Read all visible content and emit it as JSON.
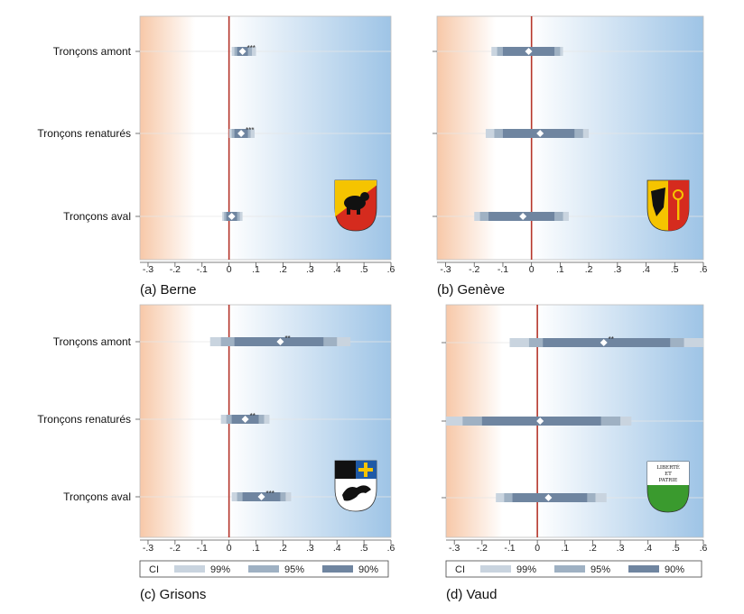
{
  "colors": {
    "left_shade": "#f7c8a8",
    "right_shade": "#9ec4e6",
    "zero_line": "#b5352b",
    "ci99": "#c9d4df",
    "ci95": "#9fb1c3",
    "ci90": "#6f85a0",
    "marker": "#ffffff"
  },
  "legend": {
    "label": "CI",
    "items": [
      "99%",
      "95%",
      "90%"
    ]
  },
  "chart_data": [
    {
      "type": "coefplot",
      "title": "(a) Berne",
      "categories": [
        "Tronçons amont",
        "Tronçons renaturés",
        "Tronçons aval"
      ],
      "show_category_labels": true,
      "xlim": [
        -0.33,
        0.6
      ],
      "xticks": [
        -0.3,
        -0.2,
        -0.1,
        0,
        0.1,
        0.2,
        0.3,
        0.4,
        0.5,
        0.6
      ],
      "xtick_labels": [
        "-.3",
        "-.2",
        "-.1",
        "0",
        ".1",
        ".2",
        ".3",
        ".4",
        ".5",
        ".6"
      ],
      "points": [
        {
          "estimate": 0.05,
          "ci90": [
            0.03,
            0.07
          ],
          "ci95": [
            0.02,
            0.085
          ],
          "ci99": [
            0.01,
            0.1
          ],
          "stars": "***"
        },
        {
          "estimate": 0.045,
          "ci90": [
            0.02,
            0.07
          ],
          "ci95": [
            0.01,
            0.08
          ],
          "ci99": [
            0.0,
            0.095
          ],
          "stars": "***"
        },
        {
          "estimate": 0.01,
          "ci90": [
            -0.01,
            0.03
          ],
          "ci95": [
            -0.018,
            0.04
          ],
          "ci99": [
            -0.025,
            0.05
          ],
          "stars": ""
        }
      ],
      "coat_of_arms": "bern-coat-of-arms"
    },
    {
      "type": "coefplot",
      "title": "(b) Genève",
      "categories": [
        "Tronçons amont",
        "Tronçons renaturés",
        "Tronçons aval"
      ],
      "show_category_labels": false,
      "xlim": [
        -0.33,
        0.6
      ],
      "xticks": [
        -0.3,
        -0.2,
        -0.1,
        0,
        0.1,
        0.2,
        0.3,
        0.4,
        0.5,
        0.6
      ],
      "xtick_labels": [
        "-.3",
        "-.2",
        "-.1",
        "0",
        ".1",
        ".2",
        ".3",
        ".4",
        ".5",
        ".6"
      ],
      "points": [
        {
          "estimate": -0.01,
          "ci90": [
            -0.1,
            0.08
          ],
          "ci95": [
            -0.12,
            0.1
          ],
          "ci99": [
            -0.14,
            0.11
          ],
          "stars": ""
        },
        {
          "estimate": 0.03,
          "ci90": [
            -0.1,
            0.15
          ],
          "ci95": [
            -0.13,
            0.18
          ],
          "ci99": [
            -0.16,
            0.2
          ],
          "stars": ""
        },
        {
          "estimate": -0.03,
          "ci90": [
            -0.15,
            0.08
          ],
          "ci95": [
            -0.18,
            0.11
          ],
          "ci99": [
            -0.2,
            0.13
          ],
          "stars": ""
        }
      ],
      "coat_of_arms": "geneva-coat-of-arms"
    },
    {
      "type": "coefplot",
      "title": "(c) Grisons",
      "categories": [
        "Tronçons amont",
        "Tronçons renaturés",
        "Tronçons aval"
      ],
      "show_category_labels": true,
      "xlim": [
        -0.33,
        0.6
      ],
      "xticks": [
        -0.3,
        -0.2,
        -0.1,
        0,
        0.1,
        0.2,
        0.3,
        0.4,
        0.5,
        0.6
      ],
      "xtick_labels": [
        "-.3",
        "-.2",
        "-.1",
        "0",
        ".1",
        ".2",
        ".3",
        ".4",
        ".5",
        ".6"
      ],
      "points": [
        {
          "estimate": 0.19,
          "ci90": [
            0.02,
            0.35
          ],
          "ci95": [
            -0.03,
            0.4
          ],
          "ci99": [
            -0.07,
            0.45
          ],
          "stars": "**"
        },
        {
          "estimate": 0.06,
          "ci90": [
            0.01,
            0.11
          ],
          "ci95": [
            -0.01,
            0.13
          ],
          "ci99": [
            -0.03,
            0.15
          ],
          "stars": "**"
        },
        {
          "estimate": 0.12,
          "ci90": [
            0.05,
            0.19
          ],
          "ci95": [
            0.03,
            0.21
          ],
          "ci99": [
            0.01,
            0.23
          ],
          "stars": "***"
        }
      ],
      "coat_of_arms": "grisons-coat-of-arms",
      "show_legend": true
    },
    {
      "type": "coefplot",
      "title": "(d) Vaud",
      "categories": [
        "Tronçons amont",
        "Tronçons renaturés",
        "Tronçons aval"
      ],
      "show_category_labels": false,
      "xlim": [
        -0.33,
        0.6
      ],
      "xticks": [
        -0.3,
        -0.2,
        -0.1,
        0,
        0.1,
        0.2,
        0.3,
        0.4,
        0.5,
        0.6
      ],
      "xtick_labels": [
        "-.3",
        "-.2",
        "-.1",
        "0",
        ".1",
        ".2",
        ".3",
        ".4",
        ".5",
        ".6"
      ],
      "points": [
        {
          "estimate": 0.24,
          "ci90": [
            0.02,
            0.48
          ],
          "ci95": [
            -0.03,
            0.53
          ],
          "ci99": [
            -0.1,
            0.6
          ],
          "stars": "**"
        },
        {
          "estimate": 0.01,
          "ci90": [
            -0.2,
            0.23
          ],
          "ci95": [
            -0.27,
            0.3
          ],
          "ci99": [
            -0.33,
            0.34
          ],
          "stars": ""
        },
        {
          "estimate": 0.04,
          "ci90": [
            -0.09,
            0.18
          ],
          "ci95": [
            -0.12,
            0.21
          ],
          "ci99": [
            -0.15,
            0.25
          ],
          "stars": ""
        }
      ],
      "coat_of_arms": "vaud-coat-of-arms",
      "coat_of_arms_text": [
        "LIBERTÉ",
        "ET",
        "PATRIE"
      ],
      "show_legend": true
    }
  ]
}
